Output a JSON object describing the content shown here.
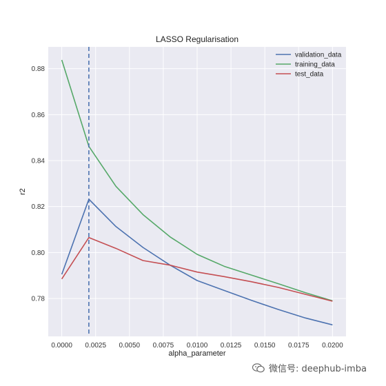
{
  "chart_data": {
    "type": "line",
    "title": "LASSO Regularisation",
    "xlabel": "alpha_parameter",
    "ylabel": "r2",
    "xlim": [
      -0.001,
      0.021
    ],
    "ylim": [
      0.7635,
      0.8895
    ],
    "xticks": [
      0.0,
      0.0025,
      0.005,
      0.0075,
      0.01,
      0.0125,
      0.015,
      0.0175,
      0.02
    ],
    "xtick_labels": [
      "0.0000",
      "0.0025",
      "0.0050",
      "0.0075",
      "0.0100",
      "0.0125",
      "0.0150",
      "0.0175",
      "0.0200"
    ],
    "yticks": [
      0.78,
      0.8,
      0.82,
      0.84,
      0.86,
      0.88
    ],
    "ytick_labels": [
      "0.78",
      "0.80",
      "0.82",
      "0.84",
      "0.86",
      "0.88"
    ],
    "grid": true,
    "legend_position": "top-right",
    "vline": {
      "x": 0.002,
      "style": "dashed",
      "color": "#4c72b0"
    },
    "x": [
      0.0,
      0.002,
      0.004,
      0.006,
      0.008,
      0.01,
      0.012,
      0.014,
      0.016,
      0.018,
      0.02
    ],
    "series": [
      {
        "name": "validation_data",
        "color": "#4c72b0",
        "values": [
          0.7905,
          0.8232,
          0.8113,
          0.8022,
          0.7945,
          0.7878,
          0.7835,
          0.7792,
          0.7752,
          0.7715,
          0.7685
        ]
      },
      {
        "name": "training_data",
        "color": "#55a868",
        "values": [
          0.8838,
          0.8462,
          0.8288,
          0.8165,
          0.8068,
          0.7992,
          0.794,
          0.7902,
          0.7864,
          0.7825,
          0.779
        ]
      },
      {
        "name": "test_data",
        "color": "#c44e52",
        "values": [
          0.7885,
          0.8065,
          0.8018,
          0.7965,
          0.7945,
          0.7915,
          0.7895,
          0.7873,
          0.7848,
          0.7818,
          0.7788
        ]
      }
    ]
  },
  "watermark": {
    "text": "微信号: deephub-imba",
    "icon": "wechat-icon"
  }
}
